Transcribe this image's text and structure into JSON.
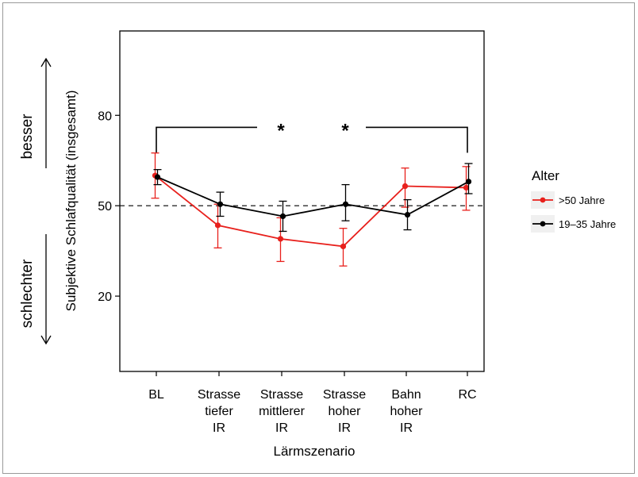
{
  "chart_data": {
    "type": "line",
    "categories": [
      [
        "BL"
      ],
      [
        "Strasse",
        "tiefer",
        "IR"
      ],
      [
        "Strasse",
        "mittlerer",
        "IR"
      ],
      [
        "Strasse",
        "hoher",
        "IR"
      ],
      [
        "Bahn",
        "hoher",
        "IR"
      ],
      [
        "RC"
      ]
    ],
    "xlabel": "Lärmszenario",
    "ylabel": "Subjektive Schlafqualität (insgesamt)",
    "yticks": [
      20,
      50,
      80
    ],
    "ylim": [
      -5,
      108
    ],
    "reference_line": 50,
    "legend_title": "Alter",
    "legend_position": "right",
    "series": [
      {
        "name": ">50 Jahre",
        "color": "#e8201c",
        "values": [
          60.0,
          43.5,
          39.0,
          36.5,
          56.5,
          56.0
        ],
        "err_low": [
          52.5,
          36.0,
          31.5,
          30.0,
          49.5,
          48.5
        ],
        "err_high": [
          67.5,
          50.5,
          46.0,
          42.5,
          62.5,
          63.0
        ]
      },
      {
        "name": "19–35 Jahre",
        "color": "#000000",
        "values": [
          59.5,
          50.5,
          46.5,
          50.5,
          47.0,
          58.0
        ],
        "err_low": [
          57.0,
          46.5,
          41.5,
          45.0,
          42.0,
          54.0
        ],
        "err_high": [
          62.0,
          54.5,
          51.5,
          57.0,
          52.0,
          64.0
        ]
      }
    ],
    "significance": {
      "from_category": 0,
      "to_category": 5,
      "bracket_y": 76,
      "markers": [
        "*",
        "*"
      ]
    },
    "side_labels": {
      "up": "besser",
      "down": "schlechter"
    }
  }
}
